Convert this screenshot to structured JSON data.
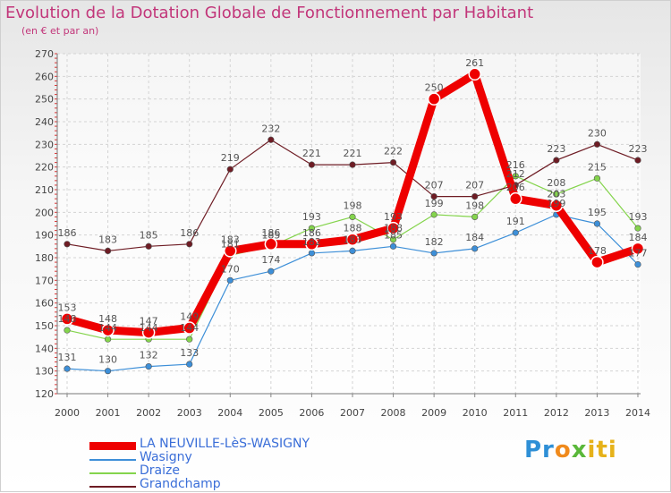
{
  "header": {
    "title": "Evolution de la Dotation Globale de Fonctionnement par Habitant",
    "subtitle": "(en € et par an)"
  },
  "logo": {
    "text": "Proxiti",
    "p1": "Pr",
    "p2": "o",
    "p3": "x",
    "p4": "iti"
  },
  "chart_data": {
    "type": "line",
    "title": "Evolution de la Dotation Globale de Fonctionnement par Habitant",
    "ylabel": "(en € et par an)",
    "xlabel": "",
    "x": [
      "2000",
      "2001",
      "2002",
      "2003",
      "2004",
      "2005",
      "2006",
      "2007",
      "2008",
      "2009",
      "2010",
      "2011",
      "2012",
      "2013",
      "2014"
    ],
    "ylim": [
      120,
      270
    ],
    "yticks": [
      120,
      130,
      140,
      150,
      160,
      170,
      180,
      190,
      200,
      210,
      220,
      230,
      240,
      250,
      260,
      270
    ],
    "grid": true,
    "legend": "bottom-left",
    "series": [
      {
        "name": "LA NEUVILLE-LèS-WASIGNY",
        "color": "#ee0000",
        "emphasis": true,
        "values": [
          153,
          148,
          147,
          149,
          183,
          186,
          186,
          188,
          193,
          250,
          261,
          206,
          203,
          178,
          184
        ]
      },
      {
        "name": "Wasigny",
        "color": "#3d8fd8",
        "values": [
          131,
          130,
          132,
          133,
          170,
          174,
          182,
          183,
          185,
          182,
          184,
          191,
          199,
          195,
          177
        ]
      },
      {
        "name": "Draize",
        "color": "#84d44c",
        "values": [
          148,
          144,
          144,
          144,
          181,
          185,
          193,
          198,
          188,
          199,
          198,
          216,
          208,
          215,
          193
        ]
      },
      {
        "name": "Grandchamp",
        "color": "#6e1c24",
        "values": [
          186,
          183,
          185,
          186,
          219,
          232,
          221,
          221,
          222,
          207,
          207,
          212,
          223,
          230,
          223
        ]
      }
    ]
  }
}
